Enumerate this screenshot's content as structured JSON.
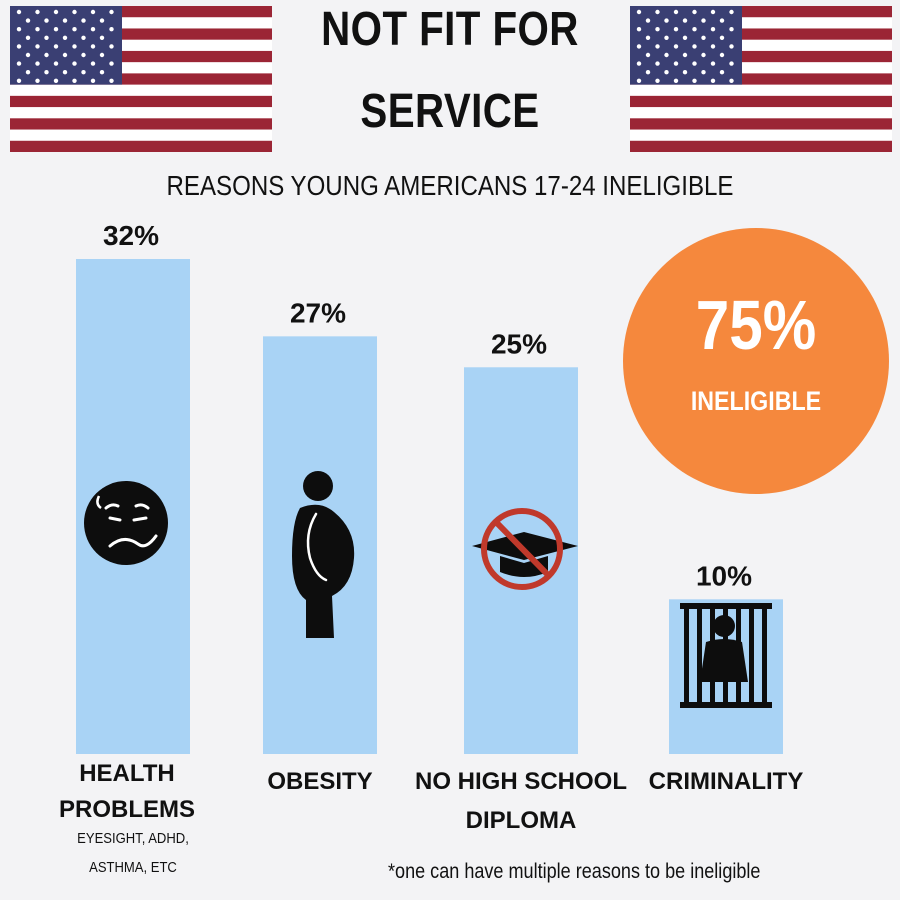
{
  "header": {
    "title_line1": "NOT FIT FOR",
    "title_line2": "SERVICE",
    "subtitle": "REASONS YOUNG AMERICANS 17-24 INELIGIBLE"
  },
  "badge": {
    "value": "75%",
    "label": "INELIGIBLE"
  },
  "health_note": [
    "EYESIGHT, ADHD,",
    "ASTHMA, ETC"
  ],
  "footnote": "*one can have multiple reasons to be ineligible",
  "colors": {
    "bar": "#a9d3f5",
    "badge": "#f5883d",
    "flag_red": "#9b2535",
    "flag_blue": "#3a3f73",
    "no_sign": "#c0392b",
    "icon": "#0d0d0d"
  },
  "chart_data": {
    "type": "bar",
    "title": "REASONS YOUNG AMERICANS 17-24 INELIGIBLE",
    "ylim": [
      0,
      32
    ],
    "categories": [
      [
        "HEALTH",
        "PROBLEMS"
      ],
      [
        "OBESITY"
      ],
      [
        "NO HIGH SCHOOL",
        "DIPLOMA"
      ],
      [
        "CRIMINALITY"
      ]
    ],
    "values": [
      32,
      27,
      25,
      10
    ],
    "value_labels": [
      "32%",
      "27%",
      "25%",
      "10%"
    ],
    "icons": [
      "sick-face-icon",
      "obese-person-icon",
      "no-graduation-cap-icon",
      "prisoner-behind-bars-icon"
    ],
    "grid": false,
    "legend": "none"
  }
}
